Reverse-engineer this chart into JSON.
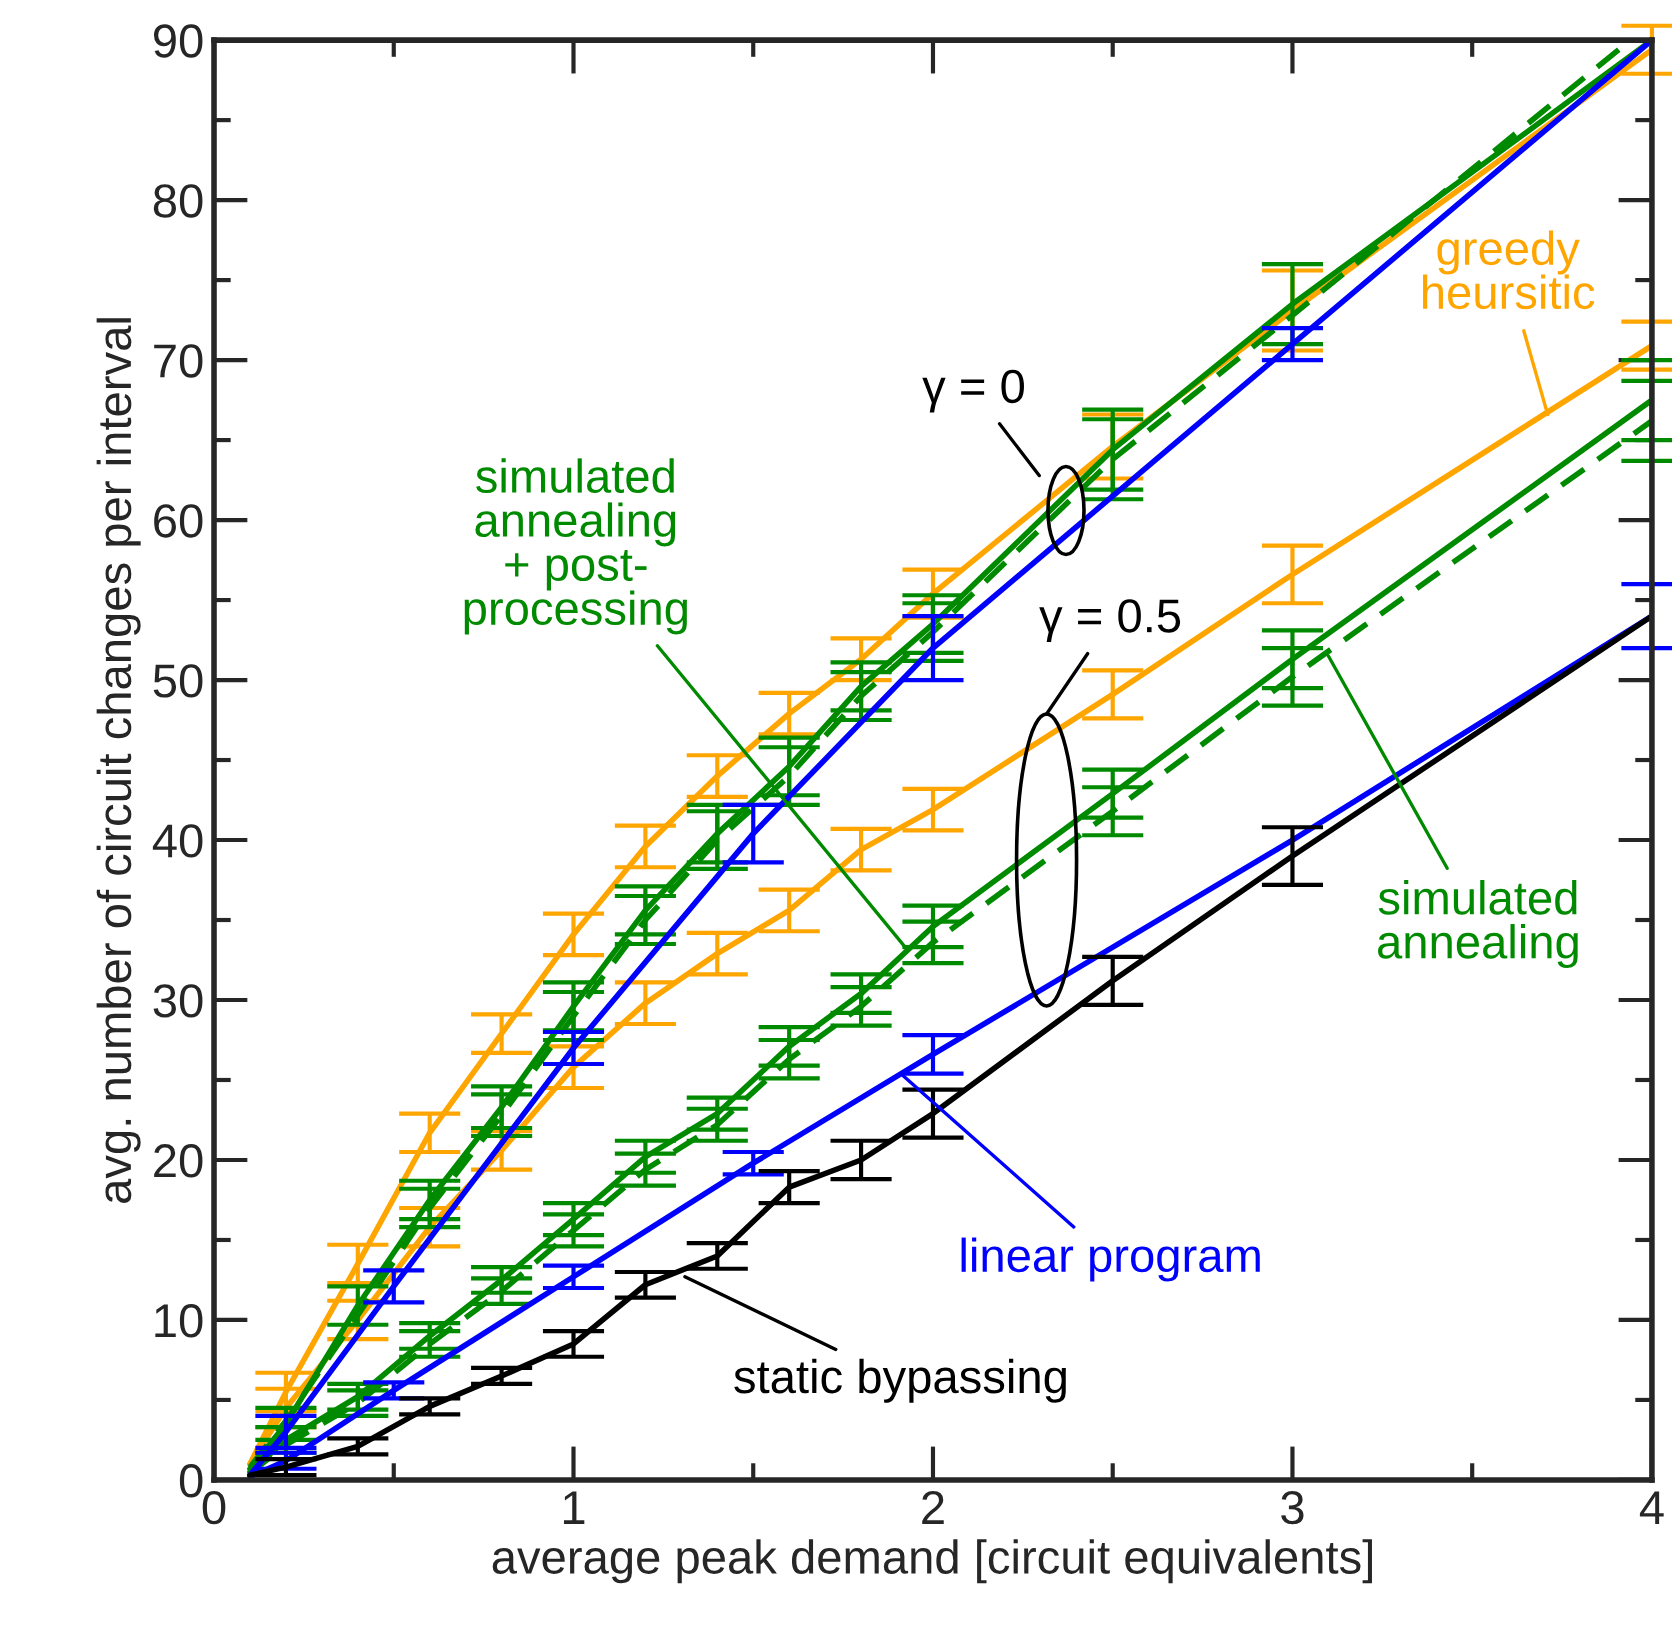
{
  "chart_data": {
    "type": "line",
    "xlabel": "average peak demand [circuit equivalents]",
    "ylabel": "avg. number of circuit changes per interval",
    "xlim": [
      0,
      4
    ],
    "ylim": [
      0,
      90
    ],
    "xticks": [
      0,
      {
        "value": 0.5,
        "label": null
      },
      1,
      {
        "value": 1.5,
        "label": null
      },
      2,
      {
        "value": 2.5,
        "label": null
      },
      3,
      {
        "value": 3.5,
        "label": null
      },
      4
    ],
    "yticks": [
      0,
      {
        "value": 5,
        "label": null
      },
      10,
      {
        "value": 15,
        "label": null
      },
      20,
      {
        "value": 25,
        "label": null
      },
      30,
      {
        "value": 35,
        "label": null
      },
      40,
      {
        "value": 45,
        "label": null
      },
      50,
      {
        "value": 55,
        "label": null
      },
      60,
      {
        "value": 65,
        "label": null
      },
      70,
      {
        "value": 75,
        "label": null
      },
      80,
      {
        "value": 85,
        "label": null
      },
      90
    ],
    "grid": false,
    "legend": false,
    "marker": "none",
    "series": [
      {
        "color": "#ffa500",
        "line_style": "solid",
        "x": [
          0.1,
          0.2,
          0.4,
          0.6,
          0.8,
          1.0,
          1.2,
          1.4,
          1.6,
          1.8,
          2.0,
          2.5,
          3.0,
          4.0
        ],
        "values": [
          1,
          5.5,
          13.5,
          21.7,
          27.9,
          34.1,
          39.6,
          44,
          47.9,
          51.3,
          55.4,
          64.6,
          73.1,
          89.4
        ],
        "errors": [
          null,
          1.2,
          1.2,
          1.2,
          1.2,
          1.3,
          1.3,
          1.3,
          1.3,
          1.3,
          1.5,
          2,
          2.5,
          1.5
        ]
      },
      {
        "color": "#ffa500",
        "line_style": "solid",
        "x": [
          0.1,
          0.2,
          0.4,
          0.6,
          0.8,
          1.0,
          1.2,
          1.4,
          1.6,
          1.8,
          2.0,
          2.5,
          3.0,
          4.0
        ],
        "values": [
          1,
          4.5,
          10,
          15.8,
          20.6,
          25.8,
          29.8,
          32.9,
          35.6,
          39.4,
          41.9,
          49.1,
          56.6,
          70.9
        ],
        "errors": [
          null,
          1.2,
          1.2,
          1.2,
          1.2,
          1.3,
          1.3,
          1.3,
          1.3,
          1.3,
          1.3,
          1.5,
          1.8,
          1.5
        ]
      },
      {
        "color": "#008a00",
        "line_style": "solid",
        "x": [
          0.1,
          0.2,
          0.4,
          0.6,
          0.8,
          1.0,
          1.2,
          1.4,
          1.6,
          1.8,
          2.0,
          2.5,
          3.0,
          4.0
        ],
        "values": [
          0.7,
          3.5,
          10.9,
          17.5,
          23.3,
          29.6,
          35.6,
          40.4,
          44.6,
          49.6,
          53.5,
          64.4,
          73.5,
          90
        ],
        "errors": [
          null,
          1,
          1.2,
          1.2,
          1.3,
          1.5,
          1.5,
          1.8,
          1.8,
          1.5,
          1.8,
          2.5,
          2.5,
          null
        ]
      },
      {
        "color": "#008a00",
        "line_style": "dashed",
        "x": [
          0.1,
          0.2,
          0.4,
          0.6,
          0.8,
          1.0,
          1.2,
          1.4,
          1.6,
          1.8,
          2.0,
          2.5,
          3.0,
          3.94
        ],
        "values": [
          0.8,
          3.7,
          10.3,
          17.0,
          22.8,
          29.0,
          35.0,
          40.0,
          44.0,
          49.0,
          53.0,
          63.8,
          72.8,
          90
        ],
        "errors": [
          null,
          null,
          null,
          1.2,
          1.3,
          1.5,
          1.5,
          1.8,
          1.8,
          1.5,
          1.8,
          2.5,
          null,
          null
        ]
      },
      {
        "color": "#008a00",
        "line_style": "solid",
        "x": [
          0.1,
          0.2,
          0.4,
          0.6,
          0.8,
          1.0,
          1.2,
          1.4,
          1.6,
          1.8,
          2.0,
          2.5,
          3.0,
          4.0
        ],
        "values": [
          0.5,
          2.5,
          5.2,
          9.0,
          12.5,
          16.3,
          20.2,
          22.9,
          27.1,
          30.4,
          34.6,
          42.9,
          51.3,
          67.5
        ],
        "errors": [
          null,
          0.8,
          0.8,
          0.8,
          0.8,
          1,
          1,
          1,
          1.2,
          1.2,
          1.3,
          1.5,
          1.8,
          2.5
        ]
      },
      {
        "color": "#008a00",
        "line_style": "dashed",
        "x": [
          0.1,
          0.2,
          0.4,
          0.6,
          0.8,
          1.0,
          1.2,
          1.4,
          1.6,
          1.8,
          2.0,
          2.5,
          3.0,
          4.0
        ],
        "values": [
          0.4,
          2.2,
          4.8,
          8.5,
          11.8,
          15.6,
          19.4,
          22.2,
          26.3,
          29.6,
          33.6,
          41.8,
          50.2,
          66.2
        ],
        "errors": [
          null,
          null,
          0.8,
          0.8,
          0.8,
          1,
          1,
          1,
          1.2,
          1.2,
          1.3,
          1.5,
          1.8,
          2.5
        ]
      },
      {
        "color": "#0000ff",
        "line_style": "solid",
        "x": [
          0.1,
          0.2,
          0.5,
          1.0,
          1.5,
          2.0,
          3.0,
          4.0
        ],
        "values": [
          0.3,
          3,
          12.1,
          27,
          40.4,
          52,
          71,
          90
        ],
        "errors": [
          null,
          1,
          1,
          1,
          1.8,
          2,
          1,
          null
        ]
      },
      {
        "color": "#0000ff",
        "line_style": "solid",
        "x": [
          0.1,
          0.2,
          0.5,
          1.0,
          1.5,
          2.0,
          3.0,
          4.0
        ],
        "values": [
          0.2,
          1.2,
          5.6,
          12.7,
          19.8,
          26.6,
          40,
          54
        ],
        "errors": [
          null,
          0.5,
          0.5,
          0.7,
          0.7,
          1.2,
          null,
          2
        ]
      },
      {
        "color": "#000000",
        "line_style": "solid",
        "x": [
          0.1,
          0.2,
          0.4,
          0.6,
          0.8,
          1.0,
          1.2,
          1.4,
          1.6,
          1.8,
          2.0,
          2.5,
          3.0,
          4.0
        ],
        "values": [
          0.3,
          0.8,
          2.1,
          4.6,
          6.5,
          8.5,
          12.2,
          14,
          18.3,
          20,
          22.9,
          31.2,
          39,
          54
        ],
        "errors": [
          null,
          0.5,
          0.5,
          0.5,
          0.5,
          0.8,
          0.8,
          0.8,
          1,
          1.2,
          1.5,
          1.5,
          1.8,
          null
        ]
      }
    ],
    "annotations": [
      {
        "text": "greedy\nheursitic",
        "x": 3.71,
        "y": 66.6
      },
      {
        "text": "simulated\nannealing\n+ post-\nprocessing",
        "x": 1.93,
        "y": 33.1
      },
      {
        "text": "simulated\nannealing",
        "x": 3.1,
        "y": 51.5
      },
      {
        "text": "linear program",
        "x": 1.91,
        "y": 25.4
      },
      {
        "text": "static bypassing",
        "x": 1.31,
        "y": 12.7
      },
      {
        "text": "γ = 0",
        "x": 2.37,
        "y": 60.6
      },
      "γ = 0.5"
    ]
  }
}
